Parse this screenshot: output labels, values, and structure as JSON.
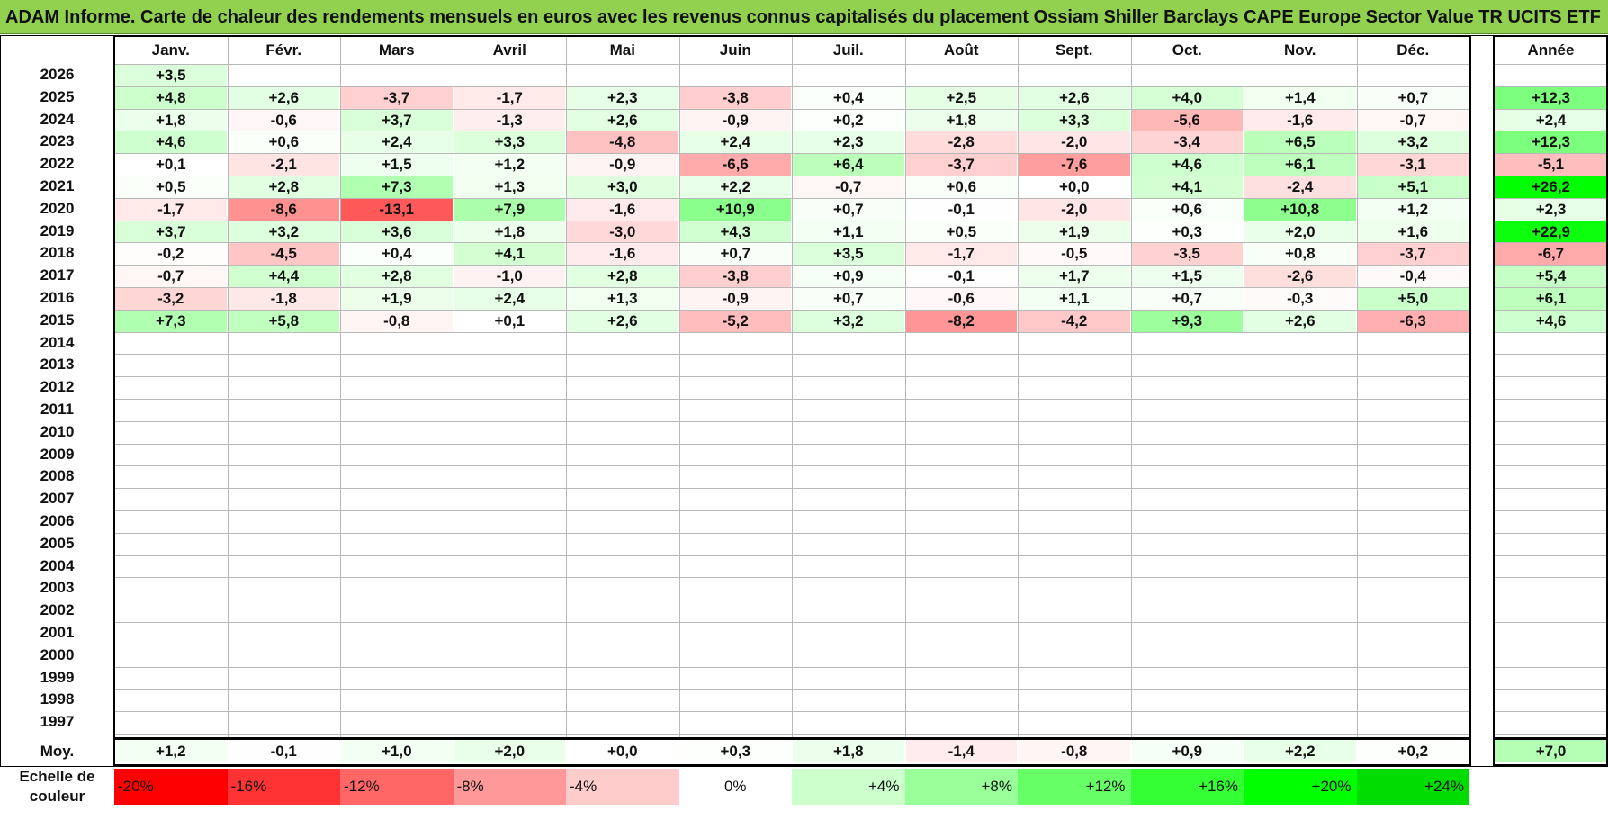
{
  "title": "ADAM Informe. Carte de chaleur des rendements mensuels en euros avec les revenus connus capitalisés du placement Ossiam Shiller Barclays CAPE Europe Sector Value TR UCITS ETF",
  "chart_data": {
    "type": "heatmap",
    "columns": [
      "Janv.",
      "Févr.",
      "Mars",
      "Avril",
      "Mai",
      "Juin",
      "Juil.",
      "Août",
      "Sept.",
      "Oct.",
      "Nov.",
      "Déc."
    ],
    "year_column": "Année",
    "rows": [
      {
        "year": "2026",
        "values": [
          "+3,5",
          "",
          "",
          "",
          "",
          "",
          "",
          "",
          "",
          "",
          "",
          ""
        ],
        "annual": ""
      },
      {
        "year": "2025",
        "values": [
          "+4,8",
          "+2,6",
          "-3,7",
          "-1,7",
          "+2,3",
          "-3,8",
          "+0,4",
          "+2,5",
          "+2,6",
          "+4,0",
          "+1,4",
          "+0,7"
        ],
        "annual": "+12,3"
      },
      {
        "year": "2024",
        "values": [
          "+1,8",
          "-0,6",
          "+3,7",
          "-1,3",
          "+2,6",
          "-0,9",
          "+0,2",
          "+1,8",
          "+3,3",
          "-5,6",
          "-1,6",
          "-0,7"
        ],
        "annual": "+2,4"
      },
      {
        "year": "2023",
        "values": [
          "+4,6",
          "+0,6",
          "+2,4",
          "+3,3",
          "-4,8",
          "+2,4",
          "+2,3",
          "-2,8",
          "-2,0",
          "-3,4",
          "+6,5",
          "+3,2"
        ],
        "annual": "+12,3"
      },
      {
        "year": "2022",
        "values": [
          "+0,1",
          "-2,1",
          "+1,5",
          "+1,2",
          "-0,9",
          "-6,6",
          "+6,4",
          "-3,7",
          "-7,6",
          "+4,6",
          "+6,1",
          "-3,1"
        ],
        "annual": "-5,1"
      },
      {
        "year": "2021",
        "values": [
          "+0,5",
          "+2,8",
          "+7,3",
          "+1,3",
          "+3,0",
          "+2,2",
          "-0,7",
          "+0,6",
          "+0,0",
          "+4,1",
          "-2,4",
          "+5,1"
        ],
        "annual": "+26,2"
      },
      {
        "year": "2020",
        "values": [
          "-1,7",
          "-8,6",
          "-13,1",
          "+7,9",
          "-1,6",
          "+10,9",
          "+0,7",
          "-0,1",
          "-2,0",
          "+0,6",
          "+10,8",
          "+1,2"
        ],
        "annual": "+2,3"
      },
      {
        "year": "2019",
        "values": [
          "+3,7",
          "+3,2",
          "+3,6",
          "+1,8",
          "-3,0",
          "+4,3",
          "+1,1",
          "+0,5",
          "+1,9",
          "+0,3",
          "+2,0",
          "+1,6"
        ],
        "annual": "+22,9"
      },
      {
        "year": "2018",
        "values": [
          "-0,2",
          "-4,5",
          "+0,4",
          "+4,1",
          "-1,6",
          "+0,7",
          "+3,5",
          "-1,7",
          "-0,5",
          "-3,5",
          "+0,8",
          "-3,7"
        ],
        "annual": "-6,7"
      },
      {
        "year": "2017",
        "values": [
          "-0,7",
          "+4,4",
          "+2,8",
          "-1,0",
          "+2,8",
          "-3,8",
          "+0,9",
          "-0,1",
          "+1,7",
          "+1,5",
          "-2,6",
          "-0,4"
        ],
        "annual": "+5,4"
      },
      {
        "year": "2016",
        "values": [
          "-3,2",
          "-1,8",
          "+1,9",
          "+2,4",
          "+1,3",
          "-0,9",
          "+0,7",
          "-0,6",
          "+1,1",
          "+0,7",
          "-0,3",
          "+5,0"
        ],
        "annual": "+6,1"
      },
      {
        "year": "2015",
        "values": [
          "+7,3",
          "+5,8",
          "-0,8",
          "+0,1",
          "+2,6",
          "-5,2",
          "+3,2",
          "-8,2",
          "-4,2",
          "+9,3",
          "+2,6",
          "-6,3"
        ],
        "annual": "+4,6"
      },
      {
        "year": "2014",
        "values": [
          "",
          "",
          "",
          "",
          "",
          "",
          "",
          "",
          "",
          "",
          "",
          ""
        ],
        "annual": ""
      },
      {
        "year": "2013",
        "values": [
          "",
          "",
          "",
          "",
          "",
          "",
          "",
          "",
          "",
          "",
          "",
          ""
        ],
        "annual": ""
      },
      {
        "year": "2012",
        "values": [
          "",
          "",
          "",
          "",
          "",
          "",
          "",
          "",
          "",
          "",
          "",
          ""
        ],
        "annual": ""
      },
      {
        "year": "2011",
        "values": [
          "",
          "",
          "",
          "",
          "",
          "",
          "",
          "",
          "",
          "",
          "",
          ""
        ],
        "annual": ""
      },
      {
        "year": "2010",
        "values": [
          "",
          "",
          "",
          "",
          "",
          "",
          "",
          "",
          "",
          "",
          "",
          ""
        ],
        "annual": ""
      },
      {
        "year": "2009",
        "values": [
          "",
          "",
          "",
          "",
          "",
          "",
          "",
          "",
          "",
          "",
          "",
          ""
        ],
        "annual": ""
      },
      {
        "year": "2008",
        "values": [
          "",
          "",
          "",
          "",
          "",
          "",
          "",
          "",
          "",
          "",
          "",
          ""
        ],
        "annual": ""
      },
      {
        "year": "2007",
        "values": [
          "",
          "",
          "",
          "",
          "",
          "",
          "",
          "",
          "",
          "",
          "",
          ""
        ],
        "annual": ""
      },
      {
        "year": "2006",
        "values": [
          "",
          "",
          "",
          "",
          "",
          "",
          "",
          "",
          "",
          "",
          "",
          ""
        ],
        "annual": ""
      },
      {
        "year": "2005",
        "values": [
          "",
          "",
          "",
          "",
          "",
          "",
          "",
          "",
          "",
          "",
          "",
          ""
        ],
        "annual": ""
      },
      {
        "year": "2004",
        "values": [
          "",
          "",
          "",
          "",
          "",
          "",
          "",
          "",
          "",
          "",
          "",
          ""
        ],
        "annual": ""
      },
      {
        "year": "2003",
        "values": [
          "",
          "",
          "",
          "",
          "",
          "",
          "",
          "",
          "",
          "",
          "",
          ""
        ],
        "annual": ""
      },
      {
        "year": "2002",
        "values": [
          "",
          "",
          "",
          "",
          "",
          "",
          "",
          "",
          "",
          "",
          "",
          ""
        ],
        "annual": ""
      },
      {
        "year": "2001",
        "values": [
          "",
          "",
          "",
          "",
          "",
          "",
          "",
          "",
          "",
          "",
          "",
          ""
        ],
        "annual": ""
      },
      {
        "year": "2000",
        "values": [
          "",
          "",
          "",
          "",
          "",
          "",
          "",
          "",
          "",
          "",
          "",
          ""
        ],
        "annual": ""
      },
      {
        "year": "1999",
        "values": [
          "",
          "",
          "",
          "",
          "",
          "",
          "",
          "",
          "",
          "",
          "",
          ""
        ],
        "annual": ""
      },
      {
        "year": "1998",
        "values": [
          "",
          "",
          "",
          "",
          "",
          "",
          "",
          "",
          "",
          "",
          "",
          ""
        ],
        "annual": ""
      },
      {
        "year": "1997",
        "values": [
          "",
          "",
          "",
          "",
          "",
          "",
          "",
          "",
          "",
          "",
          "",
          ""
        ],
        "annual": ""
      }
    ],
    "average": {
      "label": "Moy.",
      "values": [
        "+1,2",
        "-0,1",
        "+1,0",
        "+2,0",
        "+0,0",
        "+0,3",
        "+1,8",
        "-1,4",
        "-0,8",
        "+0,9",
        "+2,2",
        "+0,2"
      ],
      "annual": "+7,0"
    },
    "color_scale": {
      "label_line1": "Echelle de",
      "label_line2": "couleur",
      "steps": [
        {
          "label": "-20%",
          "color": "#ff0000"
        },
        {
          "label": "-16%",
          "color": "#ff3333"
        },
        {
          "label": "-12%",
          "color": "#ff6666"
        },
        {
          "label": "-8%",
          "color": "#ff9999"
        },
        {
          "label": "-4%",
          "color": "#ffcccc"
        },
        {
          "label": "0%",
          "color": "#ffffff"
        },
        {
          "label": "+4%",
          "color": "#ccffcc"
        },
        {
          "label": "+8%",
          "color": "#99ff99"
        },
        {
          "label": "+12%",
          "color": "#66ff66"
        },
        {
          "label": "+16%",
          "color": "#33ff33"
        },
        {
          "label": "+20%",
          "color": "#00ff00"
        },
        {
          "label": "+24%",
          "color": "#00dd00"
        }
      ]
    }
  }
}
